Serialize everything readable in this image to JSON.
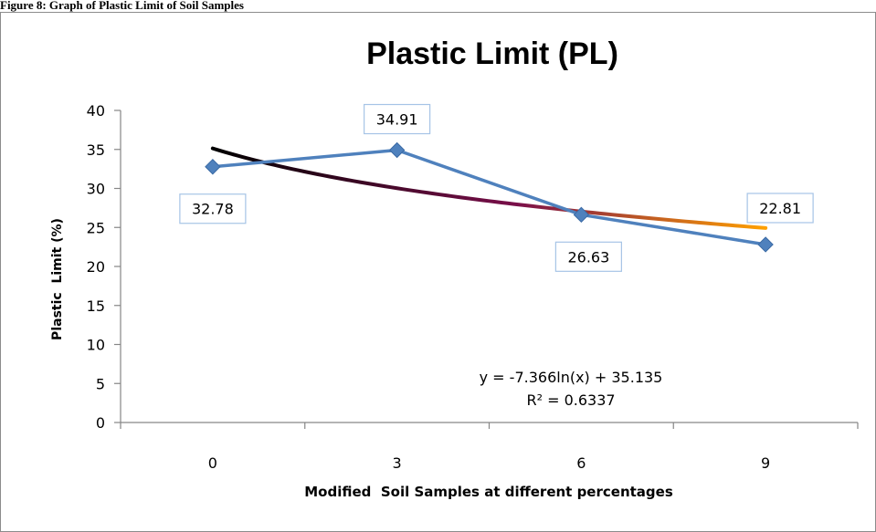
{
  "caption": "Figure 8: Graph of Plastic Limit of Soil Samples",
  "chart_data": {
    "type": "line",
    "title": "Plastic Limit (PL)",
    "xlabel": "Modified  Soil Samples at different percentages",
    "ylabel": "Plastic  Limit (%)",
    "categories": [
      "0",
      "3",
      "6",
      "9"
    ],
    "ylim": [
      0,
      40
    ],
    "yticks": [
      0,
      5,
      10,
      15,
      20,
      25,
      30,
      35,
      40
    ],
    "grid": false,
    "legend": "none",
    "series": [
      {
        "values": [
          32.78,
          34.91,
          26.63,
          22.81
        ],
        "data_labels": [
          "32.78",
          "34.91",
          "26.63",
          "22.81"
        ],
        "color": "#4f81bd",
        "marker": "diamond"
      }
    ],
    "trendline": {
      "type": "logarithmic",
      "equation": "y = -7.366ln(x) + 35.135",
      "r_squared": "R² = 0.6337",
      "slope": -7.366,
      "intercept": 35.135,
      "gradient": [
        "#000000",
        "#7a0f4a",
        "#ffa000"
      ]
    }
  }
}
